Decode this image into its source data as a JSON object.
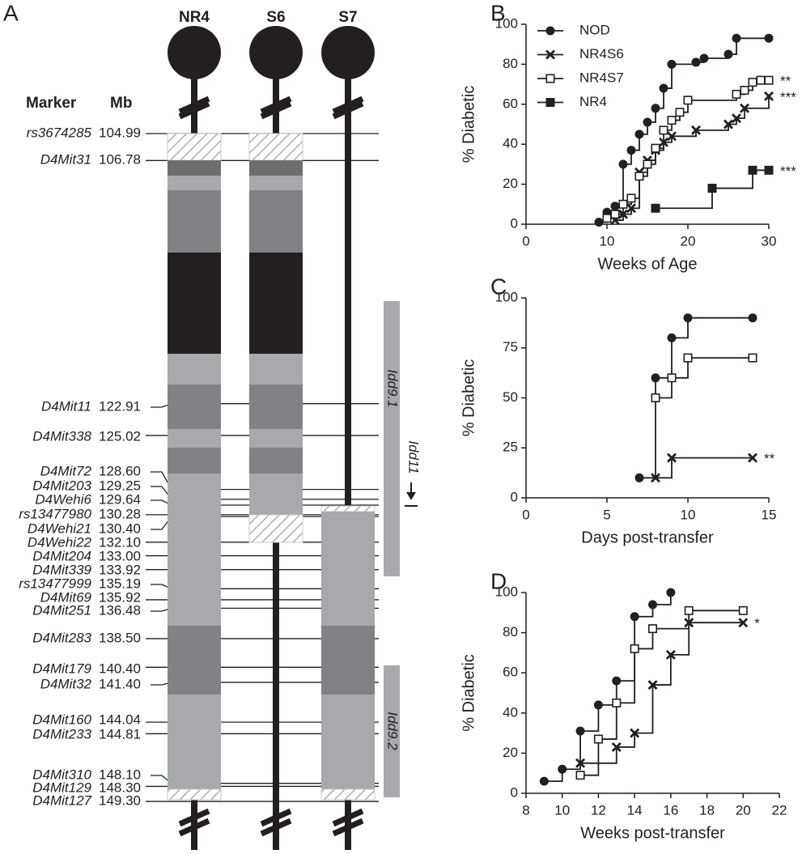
{
  "genetic_map": {
    "label": "A",
    "strains": [
      "NR4",
      "S6",
      "S7"
    ],
    "columns": [
      "Marker",
      "Mb"
    ],
    "markers": [
      {
        "name": "rs3674285",
        "mb": "104.99"
      },
      {
        "name": "D4Mit31",
        "mb": "106.78"
      },
      {
        "name": "D4Mit11",
        "mb": "122.91"
      },
      {
        "name": "D4Mit338",
        "mb": "125.02"
      },
      {
        "name": "D4Mit72",
        "mb": "128.60"
      },
      {
        "name": "D4Mit203",
        "mb": "129.25"
      },
      {
        "name": "D4Wehi6",
        "mb": "129.64"
      },
      {
        "name": "rs13477980",
        "mb": "130.28"
      },
      {
        "name": "D4Wehi21",
        "mb": "130.40"
      },
      {
        "name": "D4Wehi22",
        "mb": "132.10"
      },
      {
        "name": "D4Mit204",
        "mb": "133.00"
      },
      {
        "name": "D4Mit339",
        "mb": "133.92"
      },
      {
        "name": "rs13477999",
        "mb": "135.19"
      },
      {
        "name": "D4Mit69",
        "mb": "135.92"
      },
      {
        "name": "D4Mit251",
        "mb": "136.48"
      },
      {
        "name": "D4Mit283",
        "mb": "138.50"
      },
      {
        "name": "D4Mit179",
        "mb": "140.40"
      },
      {
        "name": "D4Mit32",
        "mb": "141.40"
      },
      {
        "name": "D4Mit160",
        "mb": "144.04"
      },
      {
        "name": "D4Mit233",
        "mb": "144.81"
      },
      {
        "name": "D4Mit310",
        "mb": "148.10"
      },
      {
        "name": "D4Mit129",
        "mb": "148.30"
      },
      {
        "name": "D4Mit127",
        "mb": "149.30"
      }
    ],
    "regions": [
      "Idd9.1",
      "Idd11",
      "Idd9.2"
    ]
  },
  "chart_data": [
    {
      "type": "step",
      "label": "B",
      "x_label": "Weeks of Age",
      "y_label": "% Diabetic",
      "xlim": [
        0,
        30
      ],
      "xticks": [
        0,
        10,
        20,
        30
      ],
      "ylim": [
        0,
        100
      ],
      "yticks": [
        0,
        20,
        40,
        60,
        80,
        100
      ],
      "legend": "top-left",
      "series": [
        {
          "name": "NOD",
          "color": "#231f20",
          "marker": "circle",
          "x": [
            9,
            10,
            11,
            12,
            13,
            14,
            15,
            16,
            17,
            18,
            21,
            22,
            25,
            26,
            30
          ],
          "values": [
            1,
            6,
            9,
            30,
            37,
            45,
            51,
            58,
            68,
            80,
            81,
            83,
            85,
            93,
            93
          ]
        },
        {
          "name": "NR4S6",
          "color": "#231f20",
          "marker": "x",
          "x": [
            11,
            12,
            13,
            14,
            15,
            16,
            17,
            18,
            21,
            25,
            26,
            27,
            30
          ],
          "values": [
            2,
            5,
            8,
            26,
            32,
            37,
            41,
            44,
            47,
            50,
            53,
            58,
            64
          ],
          "annotation": "***"
        },
        {
          "name": "NR4S7",
          "color": "#231f20",
          "marker": "open-square",
          "x": [
            10,
            11,
            12,
            13,
            14,
            15,
            16,
            17,
            18,
            19,
            20,
            26,
            27,
            28,
            29,
            30
          ],
          "values": [
            3,
            5,
            10,
            13,
            24,
            30,
            38,
            47,
            52,
            56,
            62,
            65,
            67,
            71,
            72,
            72
          ],
          "annotation": "**"
        },
        {
          "name": "NR4",
          "color": "#231f20",
          "marker": "square",
          "x": [
            16,
            23,
            28,
            30
          ],
          "values": [
            8,
            18,
            27,
            27
          ],
          "annotation": "***"
        }
      ]
    },
    {
      "type": "step",
      "label": "C",
      "x_label": "Days post-transfer",
      "y_label": "% Diabetic",
      "xlim": [
        0,
        15
      ],
      "xticks": [
        0,
        5,
        10,
        15
      ],
      "ylim": [
        0,
        100
      ],
      "yticks": [
        0,
        25,
        50,
        75,
        100
      ],
      "series": [
        {
          "color": "#231f20",
          "marker": "circle",
          "x": [
            7,
            8,
            9,
            10,
            14
          ],
          "values": [
            10,
            60,
            80,
            90,
            90
          ]
        },
        {
          "color": "#231f20",
          "marker": "x",
          "x": [
            8,
            9,
            14
          ],
          "values": [
            10,
            20,
            20
          ],
          "annotation": "**"
        },
        {
          "color": "#231f20",
          "marker": "open-square",
          "x": [
            8,
            9,
            10,
            14
          ],
          "values": [
            50,
            60,
            70,
            70
          ]
        }
      ]
    },
    {
      "type": "step",
      "label": "D",
      "x_label": "Weeks post-transfer",
      "y_label": "% Diabetic",
      "xlim": [
        8,
        22
      ],
      "xticks": [
        8,
        10,
        12,
        14,
        16,
        18,
        20,
        22
      ],
      "ylim": [
        0,
        100
      ],
      "yticks": [
        0,
        20,
        40,
        60,
        80,
        100
      ],
      "series": [
        {
          "color": "#231f20",
          "marker": "circle",
          "x": [
            9,
            10,
            11,
            12,
            13,
            14,
            15,
            16
          ],
          "values": [
            6,
            12,
            31,
            44,
            56,
            88,
            94,
            100
          ]
        },
        {
          "color": "#231f20",
          "marker": "x",
          "x": [
            11,
            13,
            14,
            15,
            16,
            17,
            20
          ],
          "values": [
            15,
            23,
            30,
            54,
            69,
            85,
            85
          ],
          "annotation": "*"
        },
        {
          "color": "#231f20",
          "marker": "open-square",
          "x": [
            11,
            12,
            13,
            14,
            15,
            17,
            20
          ],
          "values": [
            9,
            27,
            45,
            72,
            82,
            91,
            91
          ]
        }
      ]
    }
  ]
}
